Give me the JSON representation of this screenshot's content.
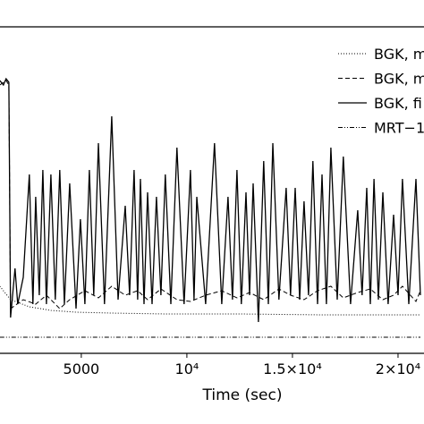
{
  "chart_data": {
    "type": "line",
    "xlabel": "Time (sec)",
    "xlim": [
      1150,
      21230
    ],
    "xticks": [
      5000,
      {
        "value": 10000,
        "label": "10⁴"
      },
      {
        "value": 15000,
        "label": "1.5×10⁴"
      },
      {
        "value": 20000,
        "label": "2×10⁴"
      }
    ],
    "ylim": [
      0,
      365
    ],
    "legend": "upper right",
    "series": [
      {
        "name": "BGK, m",
        "color": "#000000",
        "style": "dotted",
        "x": [
          1140,
          1650,
          2540,
          3560,
          4750,
          6440,
          8980,
          12580,
          16400,
          21060
        ],
        "values": [
          75,
          60,
          52,
          48,
          46,
          45,
          44,
          44,
          43,
          43
        ]
      },
      {
        "name": "BGK, m",
        "color": "#000000",
        "style": "dashed",
        "x": [
          1140,
          1440,
          1570,
          1650,
          2250,
          2840,
          3350,
          3980,
          4450,
          5170,
          5810,
          6440,
          7080,
          7670,
          8140,
          8770,
          9530,
          10170,
          10890,
          11650,
          12370,
          12970,
          13640,
          14360,
          14910,
          15550,
          16190,
          16820,
          17410,
          18090,
          18690,
          19280,
          19790,
          20210,
          20850,
          21060
        ],
        "values": [
          300,
          305,
          300,
          50,
          60,
          55,
          65,
          50,
          60,
          70,
          62,
          75,
          65,
          70,
          60,
          72,
          60,
          58,
          65,
          70,
          62,
          68,
          60,
          72,
          65,
          60,
          70,
          75,
          62,
          68,
          72,
          60,
          65,
          75,
          58,
          70
        ]
      },
      {
        "name": "BGK, fi",
        "color": "#000000",
        "style": "solid",
        "x": [
          1140,
          1310,
          1440,
          1570,
          1650,
          1860,
          1990,
          2250,
          2540,
          2710,
          2840,
          3010,
          3180,
          3350,
          3560,
          3770,
          3980,
          4200,
          4450,
          4750,
          4960,
          5170,
          5380,
          5590,
          5810,
          6100,
          6440,
          6740,
          7080,
          7290,
          7500,
          7670,
          7800,
          7970,
          8140,
          8350,
          8560,
          8770,
          8980,
          9240,
          9530,
          9870,
          10170,
          10340,
          10470,
          10890,
          11310,
          11650,
          11950,
          12160,
          12370,
          12580,
          12800,
          12970,
          13140,
          13390,
          13640,
          13860,
          14070,
          14360,
          14700,
          14910,
          15130,
          15340,
          15550,
          15760,
          15970,
          16190,
          16400,
          16610,
          16820,
          17120,
          17410,
          17750,
          18090,
          18300,
          18520,
          18690,
          18860,
          19070,
          19280,
          19530,
          19790,
          20000,
          20210,
          20510,
          20850,
          21060
        ],
        "values": [
          305,
          300,
          307,
          303,
          40,
          95,
          55,
          85,
          200,
          55,
          175,
          65,
          205,
          55,
          200,
          60,
          205,
          55,
          190,
          50,
          150,
          55,
          205,
          65,
          235,
          55,
          265,
          60,
          165,
          65,
          205,
          60,
          195,
          55,
          180,
          55,
          175,
          65,
          200,
          55,
          230,
          55,
          205,
          60,
          175,
          55,
          235,
          55,
          175,
          60,
          205,
          55,
          180,
          65,
          190,
          35,
          215,
          55,
          235,
          60,
          185,
          65,
          185,
          60,
          170,
          65,
          215,
          55,
          200,
          55,
          230,
          60,
          220,
          55,
          160,
          65,
          185,
          55,
          195,
          60,
          180,
          55,
          155,
          65,
          195,
          55,
          195,
          65
        ]
      },
      {
        "name": "MRT−1",
        "color": "#000000",
        "style": "dashdot",
        "x": [
          1140,
          21060
        ],
        "values": [
          18,
          18
        ]
      }
    ]
  }
}
